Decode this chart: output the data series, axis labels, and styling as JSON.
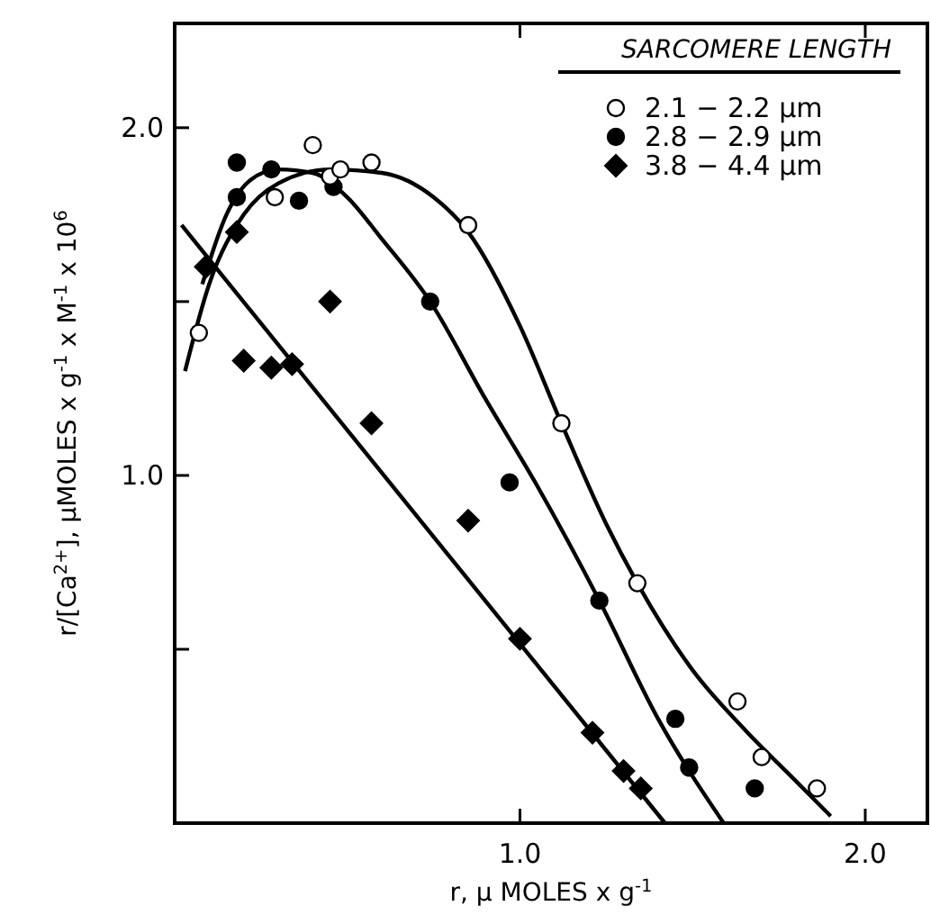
{
  "chart_data": {
    "type": "scatter",
    "xlabel": "r, μ MOLES x g$^{-1}$",
    "ylabel": "r/[Ca$^{2+}$], μMOLES x g$^{-1}$ x M$^{-1}$ x 10$^{6}$",
    "legend_title": "SARCOMERE LENGTH",
    "legend": "top right",
    "grid": false,
    "xlim": [
      0,
      2.18
    ],
    "xticks": [
      {
        "value": 1,
        "label": "1.0"
      },
      {
        "value": 2,
        "label": "2.0"
      }
    ],
    "ylim": [
      0,
      2.3
    ],
    "yticks": [
      {
        "value": 0.5,
        "label": null
      },
      {
        "value": 1,
        "label": "1.0"
      },
      {
        "value": 1.5,
        "label": null
      },
      {
        "value": 2,
        "label": "2.0"
      }
    ],
    "series": [
      {
        "name": "2.1 − 2.2 μm",
        "color": "#ffffff",
        "marker": "circle",
        "x": [
          0.07,
          0.29,
          0.4,
          0.45,
          0.48,
          0.57,
          0.85,
          1.12,
          1.34,
          1.63,
          1.7,
          1.86
        ],
        "values": [
          1.41,
          1.8,
          1.95,
          1.86,
          1.88,
          1.9,
          1.72,
          1.15,
          0.69,
          0.35,
          0.19,
          0.1
        ]
      },
      {
        "name": "2.8 − 2.9 μm",
        "color": "#000000",
        "marker": "circle",
        "x": [
          0.18,
          0.18,
          0.28,
          0.36,
          0.46,
          0.74,
          0.97,
          1.23,
          1.45,
          1.49,
          1.68
        ],
        "values": [
          1.9,
          1.8,
          1.88,
          1.79,
          1.83,
          1.5,
          0.98,
          0.64,
          0.3,
          0.16,
          0.1
        ]
      },
      {
        "name": "3.8 − 4.4 μm",
        "color": "#000000",
        "marker": "diamond",
        "x": [
          0.09,
          0.18,
          0.2,
          0.28,
          0.34,
          0.45,
          0.57,
          0.85,
          1.0,
          1.21,
          1.3,
          1.35
        ],
        "values": [
          1.6,
          1.7,
          1.33,
          1.31,
          1.32,
          1.5,
          1.15,
          0.87,
          0.53,
          0.26,
          0.15,
          0.1
        ]
      },
      {
        "type": "line",
        "color": "#000000",
        "x": [
          0.03,
          0.1,
          0.2,
          0.3,
          0.45,
          0.6,
          0.75,
          0.85,
          1.0,
          1.12,
          1.25,
          1.34,
          1.5,
          1.65,
          1.8,
          1.9
        ],
        "values": [
          1.3,
          1.55,
          1.75,
          1.84,
          1.88,
          1.87,
          1.8,
          1.7,
          1.43,
          1.15,
          0.86,
          0.69,
          0.44,
          0.27,
          0.12,
          0.02
        ]
      },
      {
        "type": "line",
        "color": "#000000",
        "x": [
          0.08,
          0.15,
          0.22,
          0.3,
          0.4,
          0.5,
          0.6,
          0.74,
          0.9,
          1.05,
          1.23,
          1.4,
          1.59
        ],
        "values": [
          1.55,
          1.75,
          1.85,
          1.88,
          1.87,
          1.8,
          1.68,
          1.5,
          1.22,
          0.97,
          0.64,
          0.3,
          0.0
        ]
      },
      {
        "type": "line",
        "color": "#000000",
        "x": [
          0.02,
          1.42
        ],
        "values": [
          1.72,
          0.0
        ]
      }
    ]
  }
}
